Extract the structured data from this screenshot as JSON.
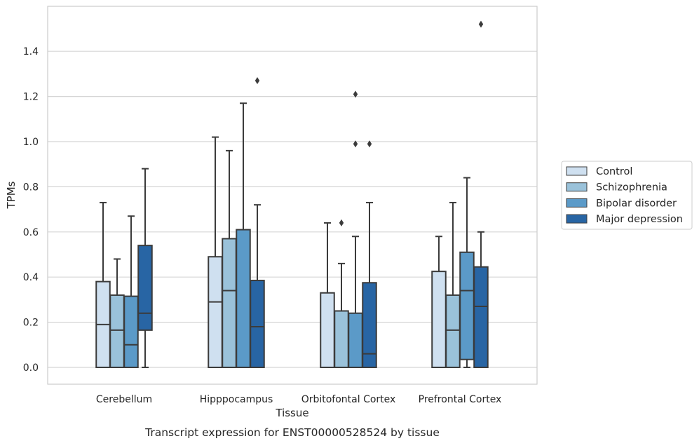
{
  "chart_data": {
    "type": "box",
    "xlabel": "Tissue",
    "ylabel": "TPMs",
    "caption": "Transcript expression for ENST00000528524 by tissue",
    "categories": [
      "Cerebellum",
      "Hipppocampus",
      "Orbitofontal Cortex",
      "Prefrontal Cortex"
    ],
    "ylim": [
      -0.075,
      1.6
    ],
    "yticks": [
      0.0,
      0.2,
      0.4,
      0.6,
      0.8,
      1.0,
      1.2,
      1.4
    ],
    "ytick_labels": [
      "0.0",
      "0.2",
      "0.4",
      "0.6",
      "0.8",
      "1.0",
      "1.2",
      "1.4"
    ],
    "grid": "horizontal",
    "legend_position": "right",
    "series": [
      {
        "name": "Control",
        "color": "#cfe0f0",
        "boxes": [
          {
            "q1": 0.0,
            "median": 0.19,
            "q3": 0.38,
            "whisker_low": 0.0,
            "whisker_high": 0.73,
            "outliers": []
          },
          {
            "q1": 0.0,
            "median": 0.29,
            "q3": 0.49,
            "whisker_low": 0.0,
            "whisker_high": 1.02,
            "outliers": []
          },
          {
            "q1": 0.0,
            "median": 0.0,
            "q3": 0.33,
            "whisker_low": 0.0,
            "whisker_high": 0.64,
            "outliers": []
          },
          {
            "q1": 0.0,
            "median": 0.0,
            "q3": 0.425,
            "whisker_low": 0.0,
            "whisker_high": 0.58,
            "outliers": []
          }
        ]
      },
      {
        "name": "Schizophrenia",
        "color": "#9ac2da",
        "boxes": [
          {
            "q1": 0.0,
            "median": 0.165,
            "q3": 0.32,
            "whisker_low": 0.0,
            "whisker_high": 0.48,
            "outliers": []
          },
          {
            "q1": 0.0,
            "median": 0.34,
            "q3": 0.57,
            "whisker_low": 0.0,
            "whisker_high": 0.96,
            "outliers": []
          },
          {
            "q1": 0.0,
            "median": 0.0,
            "q3": 0.25,
            "whisker_low": 0.0,
            "whisker_high": 0.46,
            "outliers": [
              0.64
            ]
          },
          {
            "q1": 0.0,
            "median": 0.165,
            "q3": 0.32,
            "whisker_low": 0.0,
            "whisker_high": 0.73,
            "outliers": []
          }
        ]
      },
      {
        "name": "Bipolar disorder",
        "color": "#5b9ac8",
        "boxes": [
          {
            "q1": 0.0,
            "median": 0.1,
            "q3": 0.315,
            "whisker_low": 0.0,
            "whisker_high": 0.67,
            "outliers": []
          },
          {
            "q1": 0.0,
            "median": 0.0,
            "q3": 0.61,
            "whisker_low": 0.0,
            "whisker_high": 1.17,
            "outliers": []
          },
          {
            "q1": 0.0,
            "median": 0.0,
            "q3": 0.24,
            "whisker_low": 0.0,
            "whisker_high": 0.58,
            "outliers": [
              1.21,
              0.99
            ]
          },
          {
            "q1": 0.035,
            "median": 0.34,
            "q3": 0.51,
            "whisker_low": 0.0,
            "whisker_high": 0.84,
            "outliers": []
          }
        ]
      },
      {
        "name": "Major depression",
        "color": "#2865a4",
        "boxes": [
          {
            "q1": 0.165,
            "median": 0.24,
            "q3": 0.54,
            "whisker_low": 0.0,
            "whisker_high": 0.88,
            "outliers": []
          },
          {
            "q1": 0.0,
            "median": 0.18,
            "q3": 0.385,
            "whisker_low": 0.0,
            "whisker_high": 0.72,
            "outliers": [
              1.27
            ]
          },
          {
            "q1": 0.0,
            "median": 0.06,
            "q3": 0.375,
            "whisker_low": 0.0,
            "whisker_high": 0.73,
            "outliers": [
              0.99
            ]
          },
          {
            "q1": 0.0,
            "median": 0.27,
            "q3": 0.445,
            "whisker_low": 0.0,
            "whisker_high": 0.6,
            "outliers": [
              1.52
            ]
          }
        ]
      }
    ]
  }
}
